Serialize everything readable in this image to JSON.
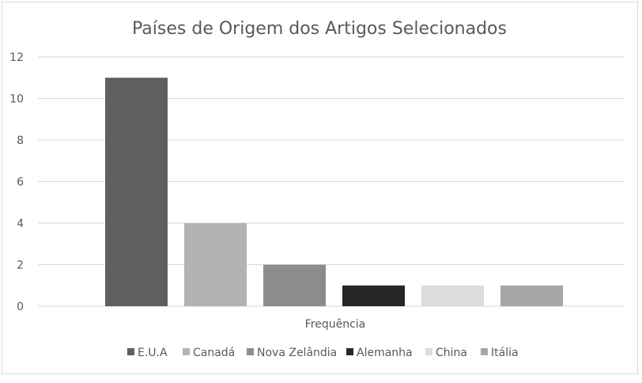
{
  "chart_data": {
    "type": "bar",
    "title": "Países de Origem dos Artigos Selecionados",
    "xlabel": "Frequência",
    "ylabel": "",
    "categories": [
      "Frequência"
    ],
    "ylim": [
      0,
      12
    ],
    "yticks": [
      "0",
      "2",
      "4",
      "6",
      "8",
      "10",
      "12"
    ],
    "grid": true,
    "legend_position": "bottom",
    "series": [
      {
        "name": "E.U.A",
        "values": [
          11
        ],
        "color": "#5f5f5f"
      },
      {
        "name": "Canadá",
        "values": [
          4
        ],
        "color": "#b2b2b2"
      },
      {
        "name": "Nova Zelândia",
        "values": [
          2
        ],
        "color": "#8c8c8c"
      },
      {
        "name": "Alemanha",
        "values": [
          1
        ],
        "color": "#262626"
      },
      {
        "name": "China",
        "values": [
          1
        ],
        "color": "#dcdcdc"
      },
      {
        "name": "Itália",
        "values": [
          1
        ],
        "color": "#a6a6a6"
      }
    ]
  }
}
